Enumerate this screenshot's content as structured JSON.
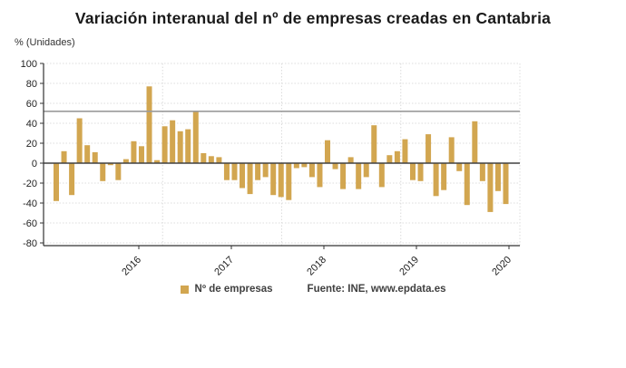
{
  "title": "Variación interanual del nº de empresas creadas en Cantabria",
  "y_axis_unit_label": "% (Unidades)",
  "legend": {
    "series_label": "Nº de empresas"
  },
  "source": "Fuente: INE, www.epdata.es",
  "colors": {
    "bar": "#D2A650",
    "axis": "#333333",
    "zero_line": "#404040",
    "grid": "#dcdcdc",
    "reference_line": "#9b9b9b",
    "tick_text": "#222222"
  },
  "chart_data": {
    "type": "bar",
    "title": "Variación interanual del nº de empresas creadas en Cantabria",
    "ylabel": "% (Unidades)",
    "ylim": [
      -83,
      100
    ],
    "y_ticks": [
      100,
      80,
      60,
      40,
      20,
      0,
      -20,
      -40,
      -60,
      -80
    ],
    "x_year_ticks": [
      "2016",
      "2017",
      "2018",
      "2019",
      "2020"
    ],
    "grid": "dotted",
    "legend_position": "bottom-center",
    "reference_line_y": 52,
    "series": [
      {
        "name": "Nº de empresas",
        "values": [
          -38,
          12,
          -32,
          45,
          18,
          11,
          -18,
          -2,
          -17,
          4,
          22,
          17,
          77,
          3,
          37,
          43,
          32,
          34,
          52,
          10,
          7,
          6,
          -17,
          -17,
          -25,
          -31,
          -17,
          -14,
          -32,
          -34,
          -37,
          -5,
          -4,
          -14,
          -24,
          23,
          -6,
          -26,
          6,
          -26,
          -14,
          38,
          -24,
          8,
          12,
          24,
          -17,
          -18,
          29,
          -33,
          -27,
          26,
          -8,
          -42,
          42,
          -18,
          -49,
          -28,
          -41
        ]
      }
    ]
  }
}
